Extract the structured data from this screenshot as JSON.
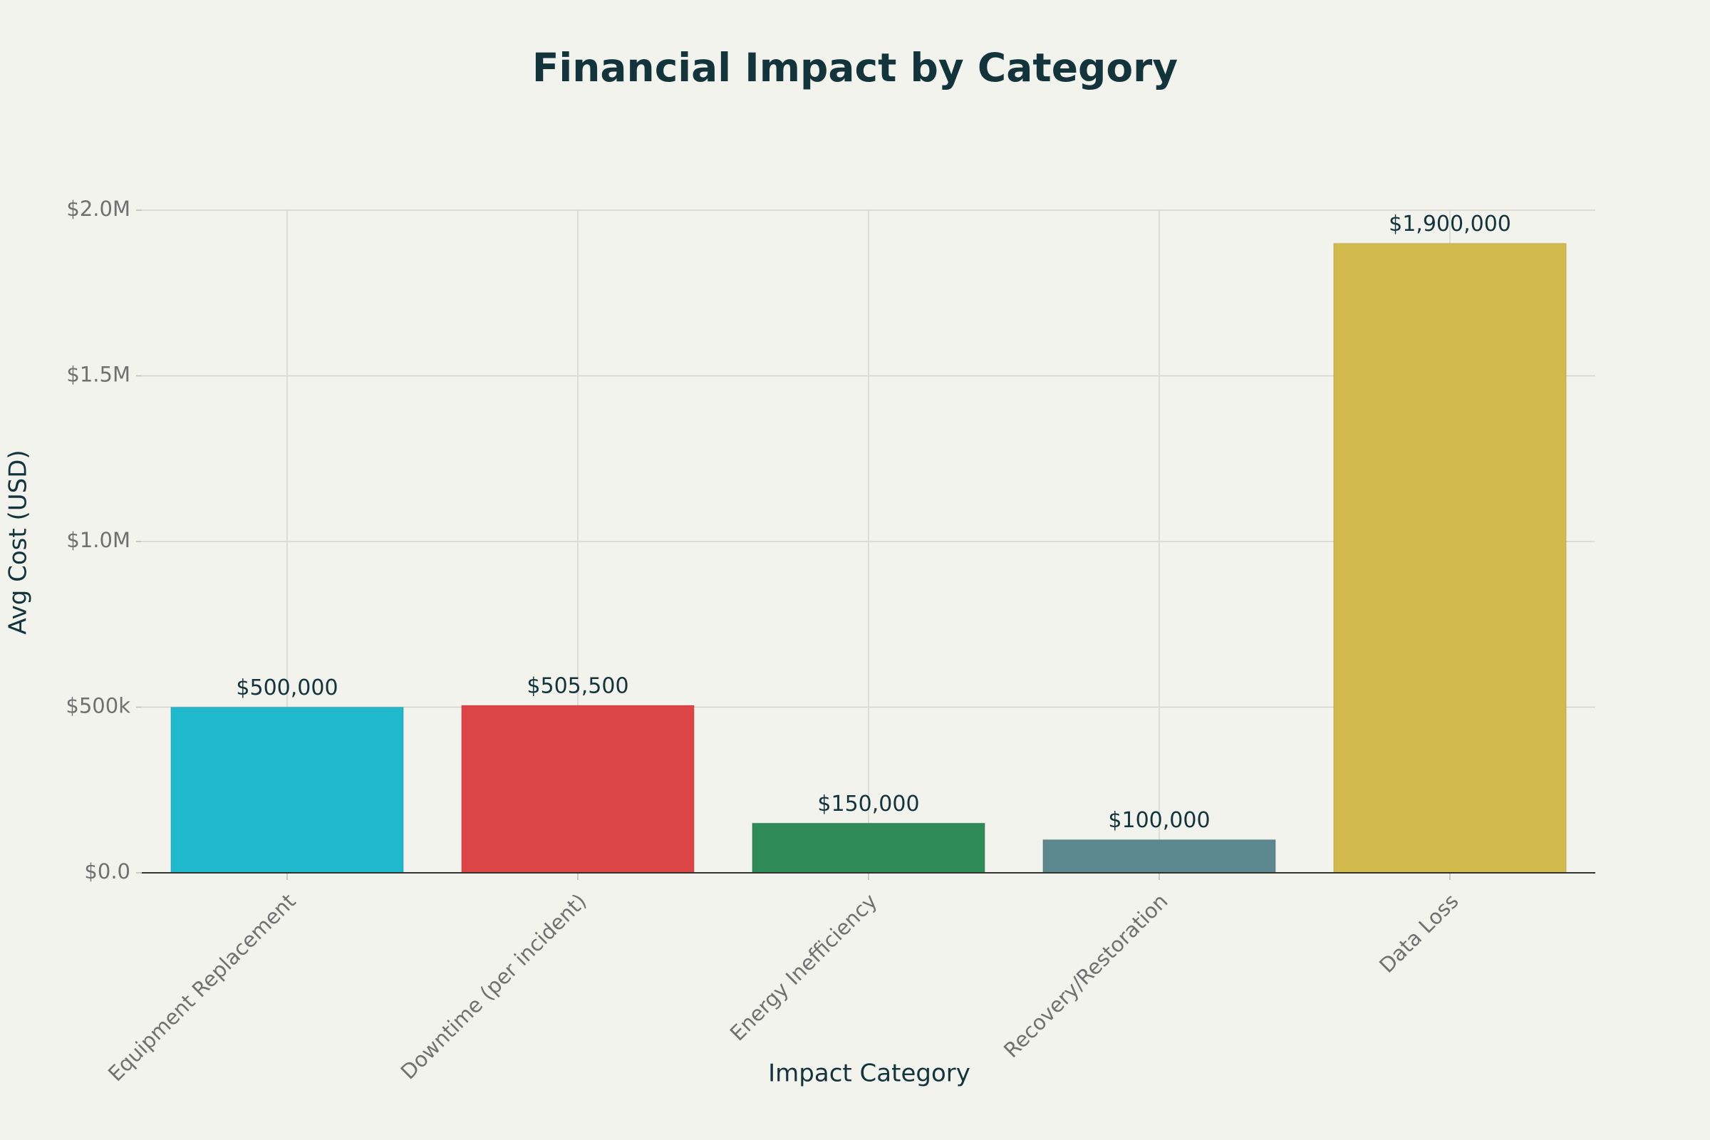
{
  "chart_data": {
    "type": "bar",
    "title": "Financial Impact by Category",
    "x_label": "Impact Category",
    "y_label": "Avg Cost (USD)",
    "categories": [
      "Equipment Replacement",
      "Downtime (per incident)",
      "Energy Inefficiency",
      "Recovery/Restoration",
      "Data Loss"
    ],
    "values": [
      500000,
      505500,
      150000,
      100000,
      1900000
    ],
    "value_labels": [
      "$500,000",
      "$505,500",
      "$150,000",
      "$100,000",
      "$1,900,000"
    ],
    "colors": [
      "#1FB8CD",
      "#DB4545",
      "#2E8B57",
      "#5D878F",
      "#D2BA4C"
    ],
    "ylim": [
      0,
      2000000
    ],
    "yticks": [
      {
        "value": 0,
        "label": "$0.0"
      },
      {
        "value": 500000,
        "label": "$500k"
      },
      {
        "value": 1000000,
        "label": "$1.0M"
      },
      {
        "value": 1500000,
        "label": "$1.5M"
      },
      {
        "value": 2000000,
        "label": "$2.0M"
      }
    ],
    "grid": true
  }
}
